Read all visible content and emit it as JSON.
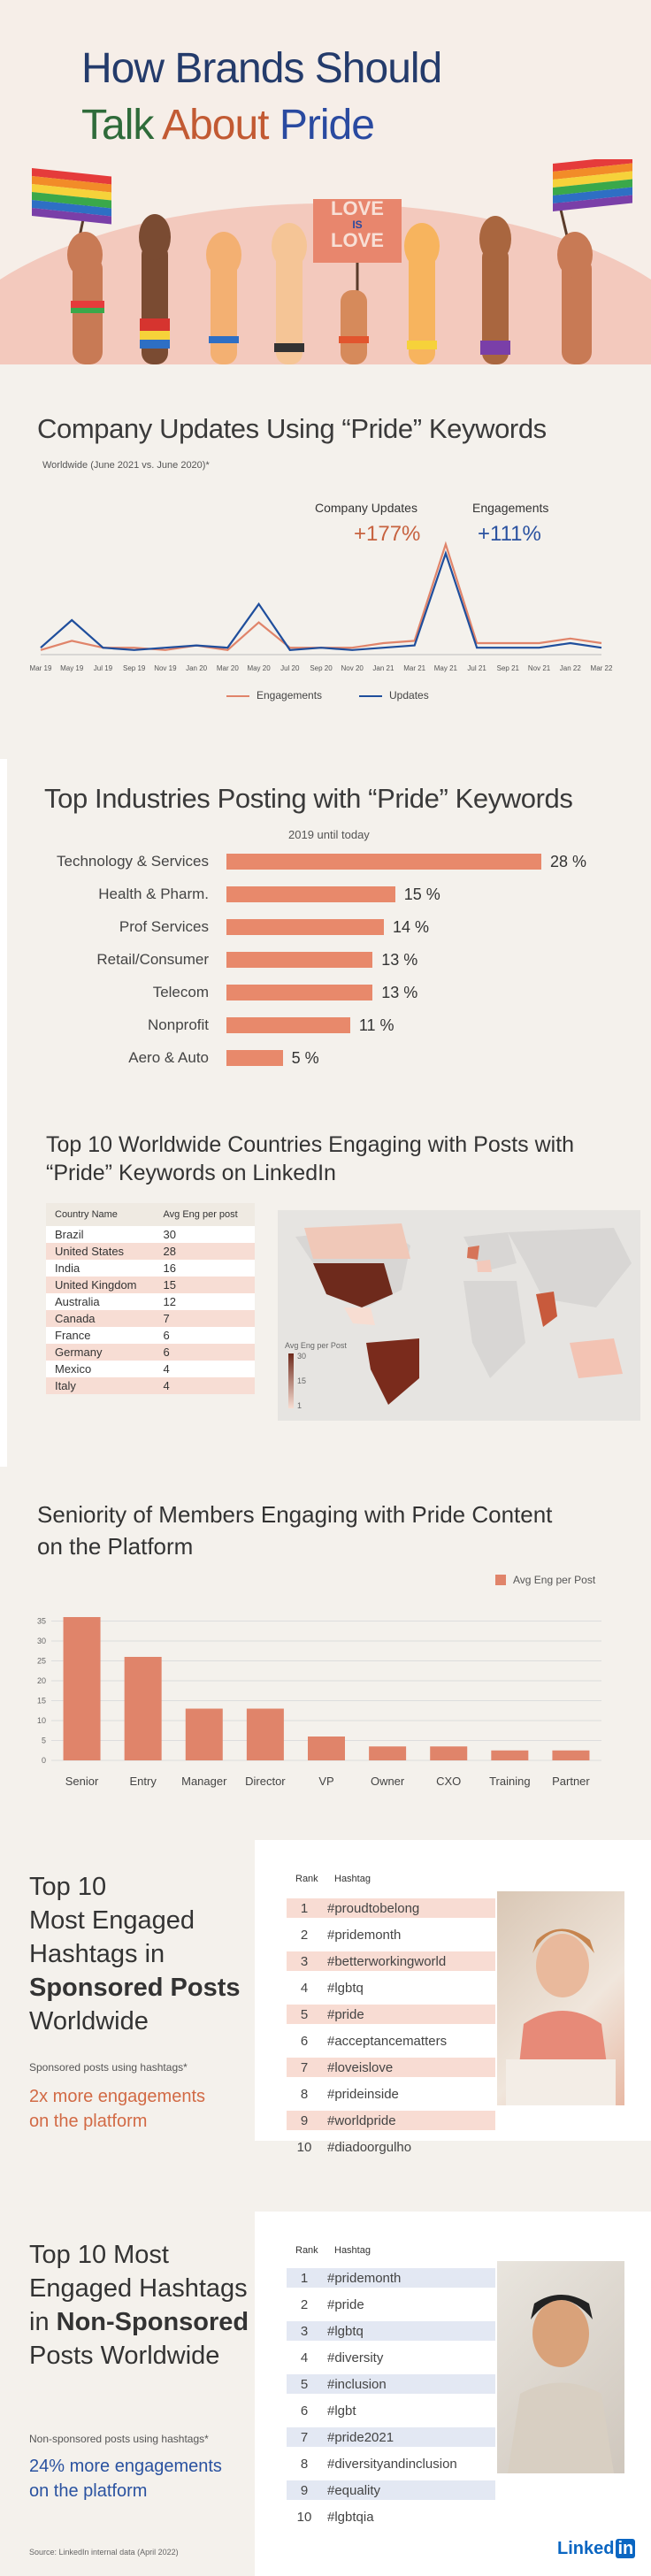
{
  "hero": {
    "title_line1": "How Brands Should",
    "title_word1": "Talk",
    "title_word2": "About",
    "title_word3": "Pride",
    "sign_line1": "LOVE",
    "sign_line2": "IS",
    "sign_line3": "LOVE"
  },
  "updates": {
    "title": "Company Updates Using “Pride” Keywords",
    "subtitle": "Worldwide (June 2021 vs.  June 2020)*",
    "stat1_label": "Company Updates",
    "stat1_value": "+177%",
    "stat2_label": "Engagements",
    "stat2_value": "+111%",
    "legend_engagements": "Engagements",
    "legend_updates": "Updates",
    "colors": {
      "engagements": "#e0846a",
      "updates": "#1f4e9c"
    }
  },
  "industries": {
    "title": "Top Industries Posting with “Pride” Keywords",
    "subtitle": "2019 until today"
  },
  "countries": {
    "title_line1": "Top 10 Worldwide Countries Engaging with Posts with",
    "title_line2": "“Pride” Keywords on LinkedIn",
    "col_country": "Country Name",
    "col_eng": "Avg Eng per post",
    "rows": [
      [
        "Brazil",
        "30"
      ],
      [
        "United States",
        "28"
      ],
      [
        "India",
        "16"
      ],
      [
        "United Kingdom",
        "15"
      ],
      [
        "Australia",
        "12"
      ],
      [
        "Canada",
        "7"
      ],
      [
        "France",
        "6"
      ],
      [
        "Germany",
        "6"
      ],
      [
        "Mexico",
        "4"
      ],
      [
        "Italy",
        "4"
      ]
    ],
    "map_legend_title": "Avg Eng per Post",
    "map_legend_max": "30",
    "map_legend_mid": "15",
    "map_legend_min": "1"
  },
  "seniority": {
    "title_line1": "Seniority of Members Engaging with Pride Content",
    "title_line2": "on the Platform"
  },
  "sponsored": {
    "title_l1": "Top 10",
    "title_l2": "Most Engaged",
    "title_l3": "Hashtags in",
    "title_l4": "Sponsored Posts",
    "title_l5": "Worldwide",
    "note": "Sponsored posts using hashtags*",
    "highlight_l1": "2x more engagements",
    "highlight_l2": "on the platform",
    "col_rank": "Rank",
    "col_hashtag": "Hashtag",
    "rows": [
      [
        "1",
        "#proudtobelong"
      ],
      [
        "2",
        "#pridemonth"
      ],
      [
        "3",
        "#betterworkingworld"
      ],
      [
        "4",
        "#lgbtq"
      ],
      [
        "5",
        "#pride"
      ],
      [
        "6",
        "#acceptancematters"
      ],
      [
        "7",
        "#loveislove"
      ],
      [
        "8",
        "#prideinside"
      ],
      [
        "9",
        "#worldpride"
      ],
      [
        "10",
        "#diadoorgulho"
      ]
    ]
  },
  "nonsponsored": {
    "title_l1": "Top 10 Most",
    "title_l2": "Engaged Hashtags",
    "title_l3a": "in ",
    "title_l3b": "Non-Sponsored",
    "title_l4": "Posts Worldwide",
    "note": "Non-sponsored posts using hashtags*",
    "highlight_l1": "24% more engagements",
    "highlight_l2": "on the platform",
    "col_rank": "Rank",
    "col_hashtag": "Hashtag",
    "rows": [
      [
        "1",
        "#pridemonth"
      ],
      [
        "2",
        "#pride"
      ],
      [
        "3",
        "#lgbtq"
      ],
      [
        "4",
        "#diversity"
      ],
      [
        "5",
        "#inclusion"
      ],
      [
        "6",
        "#lgbt"
      ],
      [
        "7",
        "#pride2021"
      ],
      [
        "8",
        "#diversityandinclusion"
      ],
      [
        "9",
        "#equality"
      ],
      [
        "10",
        "#lgbtqia"
      ]
    ]
  },
  "footer": {
    "source": "Source: LinkedIn internal data (April 2022)",
    "logo": "Linked",
    "logo_in": "in"
  },
  "chart_data": [
    {
      "type": "line",
      "title": "Company Updates Using “Pride” Keywords",
      "x": [
        "Mar 19",
        "May 19",
        "Jul 19",
        "Sep 19",
        "Nov 19",
        "Jan 20",
        "Mar 20",
        "May 20",
        "Jul 20",
        "Sep 20",
        "Nov 20",
        "Jan 21",
        "Mar 21",
        "May 21",
        "Jul 21",
        "Sep 21",
        "Nov 21",
        "Jan 22",
        "Mar 22"
      ],
      "series": [
        {
          "name": "Engagements",
          "values": [
            2,
            6,
            3,
            3,
            2,
            4,
            2,
            14,
            3,
            3,
            3,
            5,
            6,
            48,
            5,
            5,
            5,
            7,
            5
          ]
        },
        {
          "name": "Updates",
          "values": [
            3,
            15,
            3,
            2,
            3,
            4,
            3,
            22,
            2,
            3,
            2,
            3,
            4,
            44,
            3,
            3,
            3,
            5,
            3
          ]
        }
      ],
      "legend": "bottom"
    },
    {
      "type": "bar",
      "orientation": "horizontal",
      "title": "Top Industries Posting with “Pride” Keywords",
      "categories": [
        "Technology & Services",
        "Health & Pharm.",
        "Prof Services",
        "Retail/Consumer",
        "Telecom",
        "Nonprofit",
        "Aero & Auto"
      ],
      "values": [
        28,
        15,
        14,
        13,
        13,
        11,
        5
      ],
      "unit": "%"
    },
    {
      "type": "bar",
      "title": "Seniority of Members Engaging with Pride Content on the Platform",
      "categories": [
        "Senior",
        "Entry",
        "Manager",
        "Director",
        "VP",
        "Owner",
        "CXO",
        "Training",
        "Partner"
      ],
      "values": [
        36,
        26,
        13,
        13,
        6,
        3.5,
        3.5,
        2.5,
        2.5
      ],
      "ylim": [
        0,
        40
      ],
      "yticks": [
        0,
        5,
        10,
        15,
        20,
        25,
        30,
        35
      ],
      "series": [
        {
          "name": "Avg Eng per Post"
        }
      ],
      "legend": "top-right",
      "grid": true
    }
  ]
}
